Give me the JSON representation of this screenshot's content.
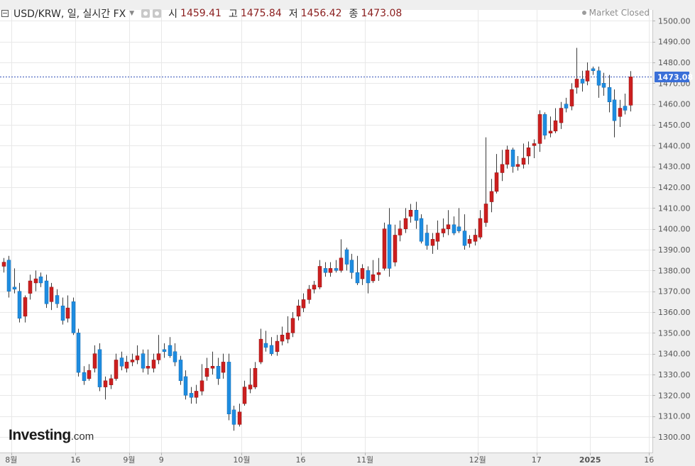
{
  "header": {
    "symbol": "USD/KRW, 일, 실시간 FX",
    "open_label": "시",
    "open_value": "1459.41",
    "high_label": "고",
    "high_value": "1475.84",
    "low_label": "저",
    "low_value": "1456.42",
    "close_label": "종",
    "close_value": "1473.08"
  },
  "market_status": "Market Closed",
  "logo": {
    "main": "Investing",
    "suffix": ".com"
  },
  "colors": {
    "up": "#cc1f1f",
    "down": "#1e8ce0",
    "wick": "#3a3a3a",
    "grid": "#e8e8e8",
    "price_line": "#3553b8",
    "price_tag": "#3a6fd8"
  },
  "chart_data": {
    "type": "candlestick",
    "last_price": "1473.08",
    "ylim": [
      1295,
      1505
    ],
    "y_ticks": [
      1300,
      1310,
      1320,
      1330,
      1340,
      1350,
      1360,
      1370,
      1380,
      1390,
      1400,
      1410,
      1420,
      1430,
      1440,
      1450,
      1460,
      1470,
      1480,
      1490,
      1500
    ],
    "y_tick_labels": [
      "1300.00",
      "1310.00",
      "1320.00",
      "1330.00",
      "1340.00",
      "1350.00",
      "1360.00",
      "1370.00",
      "1380.00",
      "1390.00",
      "1400.00",
      "1410.00",
      "1420.00",
      "1430.00",
      "1440.00",
      "1450.00",
      "1460.00",
      "1470.00",
      "1480.00",
      "1490.00",
      "1500.00"
    ],
    "x_ticks": [
      {
        "label": "8월",
        "index": 1.5
      },
      {
        "label": "16",
        "index": 13.5
      },
      {
        "label": "9월",
        "index": 23.5
      },
      {
        "label": "9",
        "index": 29.5
      },
      {
        "label": "10월",
        "index": 44.5
      },
      {
        "label": "16",
        "index": 55.5
      },
      {
        "label": "11월",
        "index": 67.5
      },
      {
        "label": "12월",
        "index": 88.5
      },
      {
        "label": "17",
        "index": 99.5
      },
      {
        "label": "2025",
        "index": 109.5
      },
      {
        "label": "16",
        "index": 120.5
      }
    ],
    "candles": [
      {
        "o": 1382.0,
        "h": 1386.0,
        "l": 1379.0,
        "c": 1384.0
      },
      {
        "o": 1385.0,
        "h": 1387.0,
        "l": 1367.0,
        "c": 1370.0
      },
      {
        "o": 1372.0,
        "h": 1381.0,
        "l": 1369.0,
        "c": 1371.0
      },
      {
        "o": 1370.0,
        "h": 1374.0,
        "l": 1355.0,
        "c": 1357.0
      },
      {
        "o": 1358.0,
        "h": 1368.0,
        "l": 1355.0,
        "c": 1367.0
      },
      {
        "o": 1369.0,
        "h": 1378.0,
        "l": 1366.0,
        "c": 1375.0
      },
      {
        "o": 1374.0,
        "h": 1380.0,
        "l": 1370.0,
        "c": 1376.0
      },
      {
        "o": 1377.0,
        "h": 1379.0,
        "l": 1372.0,
        "c": 1374.0
      },
      {
        "o": 1375.0,
        "h": 1378.0,
        "l": 1362.0,
        "c": 1364.0
      },
      {
        "o": 1365.0,
        "h": 1374.0,
        "l": 1361.0,
        "c": 1372.0
      },
      {
        "o": 1368.0,
        "h": 1371.0,
        "l": 1362.0,
        "c": 1364.0
      },
      {
        "o": 1363.0,
        "h": 1367.0,
        "l": 1354.0,
        "c": 1356.0
      },
      {
        "o": 1357.0,
        "h": 1368.0,
        "l": 1355.0,
        "c": 1362.0
      },
      {
        "o": 1365.0,
        "h": 1367.0,
        "l": 1349.0,
        "c": 1350.0
      },
      {
        "o": 1350.0,
        "h": 1352.0,
        "l": 1329.0,
        "c": 1331.0
      },
      {
        "o": 1331.0,
        "h": 1334.0,
        "l": 1325.0,
        "c": 1327.0
      },
      {
        "o": 1328.0,
        "h": 1335.0,
        "l": 1327.0,
        "c": 1332.0
      },
      {
        "o": 1333.0,
        "h": 1344.0,
        "l": 1331.0,
        "c": 1340.0
      },
      {
        "o": 1342.0,
        "h": 1345.0,
        "l": 1322.0,
        "c": 1324.0
      },
      {
        "o": 1324.0,
        "h": 1329.0,
        "l": 1318.0,
        "c": 1327.0
      },
      {
        "o": 1325.0,
        "h": 1330.0,
        "l": 1323.0,
        "c": 1328.0
      },
      {
        "o": 1328.0,
        "h": 1340.0,
        "l": 1327.0,
        "c": 1337.0
      },
      {
        "o": 1338.0,
        "h": 1341.0,
        "l": 1332.0,
        "c": 1334.0
      },
      {
        "o": 1333.0,
        "h": 1339.0,
        "l": 1331.0,
        "c": 1336.0
      },
      {
        "o": 1336.0,
        "h": 1340.0,
        "l": 1334.0,
        "c": 1337.0
      },
      {
        "o": 1337.0,
        "h": 1344.0,
        "l": 1335.0,
        "c": 1339.0
      },
      {
        "o": 1340.0,
        "h": 1342.0,
        "l": 1331.0,
        "c": 1333.0
      },
      {
        "o": 1333.0,
        "h": 1342.0,
        "l": 1330.0,
        "c": 1334.0
      },
      {
        "o": 1333.0,
        "h": 1340.0,
        "l": 1331.0,
        "c": 1337.0
      },
      {
        "o": 1337.0,
        "h": 1349.0,
        "l": 1335.0,
        "c": 1340.0
      },
      {
        "o": 1342.0,
        "h": 1345.0,
        "l": 1338.0,
        "c": 1341.0
      },
      {
        "o": 1344.0,
        "h": 1348.0,
        "l": 1338.0,
        "c": 1339.0
      },
      {
        "o": 1341.0,
        "h": 1345.0,
        "l": 1334.0,
        "c": 1336.0
      },
      {
        "o": 1337.0,
        "h": 1339.0,
        "l": 1325.0,
        "c": 1327.0
      },
      {
        "o": 1329.0,
        "h": 1332.0,
        "l": 1318.0,
        "c": 1320.0
      },
      {
        "o": 1321.0,
        "h": 1324.0,
        "l": 1316.0,
        "c": 1319.0
      },
      {
        "o": 1319.0,
        "h": 1325.0,
        "l": 1316.0,
        "c": 1322.0
      },
      {
        "o": 1322.0,
        "h": 1335.0,
        "l": 1320.0,
        "c": 1327.0
      },
      {
        "o": 1329.0,
        "h": 1338.0,
        "l": 1327.0,
        "c": 1333.0
      },
      {
        "o": 1333.0,
        "h": 1341.0,
        "l": 1330.0,
        "c": 1334.0
      },
      {
        "o": 1334.0,
        "h": 1338.0,
        "l": 1325.0,
        "c": 1328.0
      },
      {
        "o": 1331.0,
        "h": 1340.0,
        "l": 1328.0,
        "c": 1336.0
      },
      {
        "o": 1336.0,
        "h": 1340.0,
        "l": 1308.0,
        "c": 1311.0
      },
      {
        "o": 1313.0,
        "h": 1315.0,
        "l": 1303.0,
        "c": 1306.0
      },
      {
        "o": 1306.0,
        "h": 1316.0,
        "l": 1305.0,
        "c": 1312.0
      },
      {
        "o": 1316.0,
        "h": 1327.0,
        "l": 1315.0,
        "c": 1324.0
      },
      {
        "o": 1323.0,
        "h": 1333.0,
        "l": 1321.0,
        "c": 1325.0
      },
      {
        "o": 1324.0,
        "h": 1336.0,
        "l": 1323.0,
        "c": 1333.0
      },
      {
        "o": 1336.0,
        "h": 1352.0,
        "l": 1335.0,
        "c": 1347.0
      },
      {
        "o": 1345.0,
        "h": 1351.0,
        "l": 1341.0,
        "c": 1343.0
      },
      {
        "o": 1344.0,
        "h": 1348.0,
        "l": 1339.0,
        "c": 1340.0
      },
      {
        "o": 1341.0,
        "h": 1349.0,
        "l": 1339.0,
        "c": 1346.0
      },
      {
        "o": 1346.0,
        "h": 1353.0,
        "l": 1344.0,
        "c": 1349.0
      },
      {
        "o": 1347.0,
        "h": 1358.0,
        "l": 1345.0,
        "c": 1350.0
      },
      {
        "o": 1350.0,
        "h": 1360.0,
        "l": 1348.0,
        "c": 1357.0
      },
      {
        "o": 1358.0,
        "h": 1366.0,
        "l": 1356.0,
        "c": 1363.0
      },
      {
        "o": 1362.0,
        "h": 1369.0,
        "l": 1360.0,
        "c": 1366.0
      },
      {
        "o": 1366.0,
        "h": 1373.0,
        "l": 1364.0,
        "c": 1371.0
      },
      {
        "o": 1371.0,
        "h": 1375.0,
        "l": 1369.0,
        "c": 1373.0
      },
      {
        "o": 1372.0,
        "h": 1385.0,
        "l": 1371.0,
        "c": 1382.0
      },
      {
        "o": 1381.0,
        "h": 1384.0,
        "l": 1377.0,
        "c": 1379.0
      },
      {
        "o": 1379.0,
        "h": 1384.0,
        "l": 1377.0,
        "c": 1381.0
      },
      {
        "o": 1381.0,
        "h": 1385.0,
        "l": 1379.0,
        "c": 1380.0
      },
      {
        "o": 1380.0,
        "h": 1395.0,
        "l": 1379.0,
        "c": 1386.0
      },
      {
        "o": 1390.0,
        "h": 1391.0,
        "l": 1380.0,
        "c": 1383.0
      },
      {
        "o": 1385.0,
        "h": 1388.0,
        "l": 1376.0,
        "c": 1379.0
      },
      {
        "o": 1379.0,
        "h": 1387.0,
        "l": 1373.0,
        "c": 1374.0
      },
      {
        "o": 1376.0,
        "h": 1383.0,
        "l": 1373.0,
        "c": 1381.0
      },
      {
        "o": 1380.0,
        "h": 1382.0,
        "l": 1369.0,
        "c": 1374.0
      },
      {
        "o": 1375.0,
        "h": 1385.0,
        "l": 1374.0,
        "c": 1378.0
      },
      {
        "o": 1378.0,
        "h": 1386.0,
        "l": 1375.0,
        "c": 1379.0
      },
      {
        "o": 1381.0,
        "h": 1403.0,
        "l": 1380.0,
        "c": 1400.0
      },
      {
        "o": 1402.0,
        "h": 1410.0,
        "l": 1377.0,
        "c": 1381.0
      },
      {
        "o": 1384.0,
        "h": 1402.0,
        "l": 1382.0,
        "c": 1397.0
      },
      {
        "o": 1397.0,
        "h": 1404.0,
        "l": 1394.0,
        "c": 1400.0
      },
      {
        "o": 1400.0,
        "h": 1410.0,
        "l": 1398.0,
        "c": 1405.0
      },
      {
        "o": 1406.0,
        "h": 1412.0,
        "l": 1403.0,
        "c": 1409.0
      },
      {
        "o": 1409.0,
        "h": 1413.0,
        "l": 1400.0,
        "c": 1404.0
      },
      {
        "o": 1405.0,
        "h": 1407.0,
        "l": 1393.0,
        "c": 1394.0
      },
      {
        "o": 1398.0,
        "h": 1402.0,
        "l": 1390.0,
        "c": 1392.0
      },
      {
        "o": 1392.0,
        "h": 1398.0,
        "l": 1388.0,
        "c": 1395.0
      },
      {
        "o": 1394.0,
        "h": 1404.0,
        "l": 1390.0,
        "c": 1398.0
      },
      {
        "o": 1398.0,
        "h": 1405.0,
        "l": 1396.0,
        "c": 1400.0
      },
      {
        "o": 1400.0,
        "h": 1409.0,
        "l": 1397.0,
        "c": 1402.0
      },
      {
        "o": 1402.0,
        "h": 1406.0,
        "l": 1397.0,
        "c": 1398.0
      },
      {
        "o": 1401.0,
        "h": 1410.0,
        "l": 1398.0,
        "c": 1399.0
      },
      {
        "o": 1399.0,
        "h": 1407.0,
        "l": 1390.0,
        "c": 1392.0
      },
      {
        "o": 1393.0,
        "h": 1397.0,
        "l": 1391.0,
        "c": 1395.0
      },
      {
        "o": 1394.0,
        "h": 1400.0,
        "l": 1392.0,
        "c": 1397.0
      },
      {
        "o": 1396.0,
        "h": 1409.0,
        "l": 1395.0,
        "c": 1405.0
      },
      {
        "o": 1403.0,
        "h": 1444.0,
        "l": 1401.0,
        "c": 1412.0
      },
      {
        "o": 1413.0,
        "h": 1424.0,
        "l": 1408.0,
        "c": 1418.0
      },
      {
        "o": 1418.0,
        "h": 1436.0,
        "l": 1417.0,
        "c": 1427.0
      },
      {
        "o": 1427.0,
        "h": 1438.0,
        "l": 1423.0,
        "c": 1431.0
      },
      {
        "o": 1431.0,
        "h": 1440.0,
        "l": 1429.0,
        "c": 1438.0
      },
      {
        "o": 1438.0,
        "h": 1439.0,
        "l": 1427.0,
        "c": 1430.0
      },
      {
        "o": 1430.0,
        "h": 1435.0,
        "l": 1428.0,
        "c": 1431.0
      },
      {
        "o": 1431.0,
        "h": 1441.0,
        "l": 1429.0,
        "c": 1434.0
      },
      {
        "o": 1435.0,
        "h": 1442.0,
        "l": 1431.0,
        "c": 1439.0
      },
      {
        "o": 1440.0,
        "h": 1443.0,
        "l": 1434.0,
        "c": 1441.0
      },
      {
        "o": 1441.0,
        "h": 1457.0,
        "l": 1437.0,
        "c": 1455.0
      },
      {
        "o": 1455.0,
        "h": 1456.0,
        "l": 1443.0,
        "c": 1445.0
      },
      {
        "o": 1446.0,
        "h": 1454.0,
        "l": 1444.0,
        "c": 1447.0
      },
      {
        "o": 1447.0,
        "h": 1458.0,
        "l": 1446.0,
        "c": 1452.0
      },
      {
        "o": 1451.0,
        "h": 1461.0,
        "l": 1448.0,
        "c": 1458.0
      },
      {
        "o": 1460.0,
        "h": 1463.0,
        "l": 1456.0,
        "c": 1458.0
      },
      {
        "o": 1459.0,
        "h": 1470.0,
        "l": 1457.0,
        "c": 1467.0
      },
      {
        "o": 1468.0,
        "h": 1487.0,
        "l": 1465.0,
        "c": 1472.0
      },
      {
        "o": 1472.0,
        "h": 1476.0,
        "l": 1466.0,
        "c": 1470.0
      },
      {
        "o": 1471.0,
        "h": 1480.0,
        "l": 1469.0,
        "c": 1476.0
      },
      {
        "o": 1477.0,
        "h": 1478.0,
        "l": 1474.0,
        "c": 1476.0
      },
      {
        "o": 1476.0,
        "h": 1478.0,
        "l": 1463.0,
        "c": 1469.0
      },
      {
        "o": 1470.0,
        "h": 1475.0,
        "l": 1464.0,
        "c": 1468.0
      },
      {
        "o": 1468.0,
        "h": 1474.0,
        "l": 1456.0,
        "c": 1461.0
      },
      {
        "o": 1462.0,
        "h": 1467.0,
        "l": 1444.0,
        "c": 1452.0
      },
      {
        "o": 1454.0,
        "h": 1462.0,
        "l": 1449.0,
        "c": 1458.0
      },
      {
        "o": 1459.0,
        "h": 1465.0,
        "l": 1455.0,
        "c": 1457.0
      },
      {
        "o": 1459.41,
        "h": 1475.84,
        "l": 1456.42,
        "c": 1473.08
      }
    ]
  }
}
